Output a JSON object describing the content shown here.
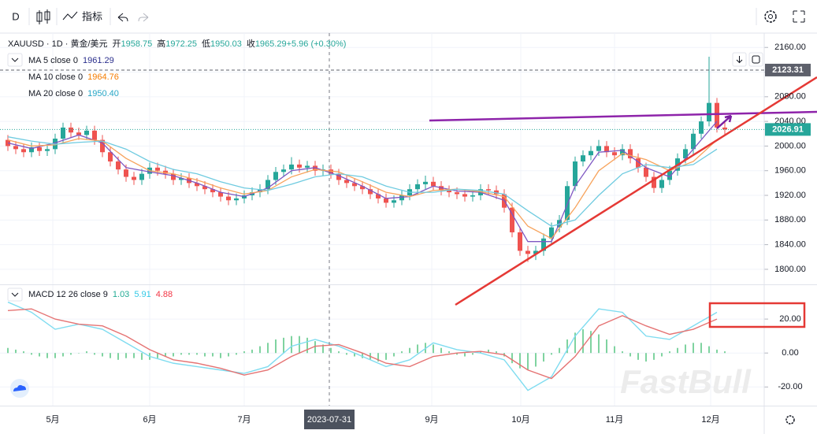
{
  "toolbar": {
    "interval": "D",
    "indicators": "指标"
  },
  "watermark": "FastBull",
  "time_axis": {
    "labels": [
      "5月",
      "6月",
      "7月",
      "9月",
      "10月",
      "11月",
      "12月"
    ],
    "crosshair_date": "2023-07-31"
  },
  "chart_data": [
    {
      "type": "candlestick",
      "title": "XAUUSD · 1D · 黄金/美元",
      "ohlc_legend": [
        {
          "label": "开",
          "value": "1958.75"
        },
        {
          "label": "高",
          "value": "1972.25"
        },
        {
          "label": "低",
          "value": "1950.03"
        },
        {
          "label": "收",
          "value": "1965.29"
        },
        {
          "label": "",
          "value": "+5.96 (+0.30%)"
        }
      ],
      "up_color": "#26a69a",
      "down_color": "#ef5350",
      "ylim": [
        1775.6,
        2183.3
      ],
      "yticks": [
        {
          "value": 2160,
          "label": "2160.00"
        },
        {
          "value": 2120,
          "label": "2120.00"
        },
        {
          "value": 2080,
          "label": "2080.00"
        },
        {
          "value": 2040,
          "label": "2040.00"
        },
        {
          "value": 2000,
          "label": "2000.00"
        },
        {
          "value": 1960,
          "label": "1960.00"
        },
        {
          "value": 1920,
          "label": "1920.00"
        },
        {
          "value": 1880,
          "label": "1880.00"
        },
        {
          "value": 1840,
          "label": "1840.00"
        },
        {
          "value": 1800,
          "label": "1800.00"
        }
      ],
      "ohlc": {
        "open": [
          2010,
          2000,
          1995,
          1990,
          1998,
          1992,
          1995,
          2012,
          2030,
          2022,
          2018,
          2025,
          2010,
          1990,
          1975,
          1962,
          1950,
          1945,
          1955,
          1965,
          1960,
          1955,
          1945,
          1948,
          1940,
          1935,
          1930,
          1925,
          1918,
          1912,
          1915,
          1920,
          1925,
          1930,
          1945,
          1958,
          1962,
          1970,
          1965,
          1968,
          1960,
          1962,
          1955,
          1945,
          1940,
          1935,
          1930,
          1922,
          1915,
          1908,
          1912,
          1920,
          1930,
          1938,
          1942,
          1935,
          1928,
          1925,
          1922,
          1918,
          1920,
          1930,
          1928,
          1922,
          1900,
          1860,
          1830,
          1825,
          1830,
          1850,
          1868,
          1880,
          1935,
          1975,
          1985,
          1992,
          2000,
          1990,
          1985,
          1995,
          1980,
          1965,
          1950,
          1932,
          1945,
          1960,
          1980,
          1995,
          2020,
          2040,
          2070,
          2030
        ],
        "high": [
          2018,
          2008,
          2003,
          2006,
          2006,
          2003,
          2020,
          2038,
          2038,
          2030,
          2033,
          2033,
          2018,
          1998,
          1983,
          1970,
          1958,
          1963,
          1973,
          1973,
          1968,
          1963,
          1956,
          1956,
          1948,
          1943,
          1938,
          1933,
          1926,
          1923,
          1928,
          1933,
          1938,
          1953,
          1966,
          1970,
          1982,
          1978,
          1976,
          1976,
          1970,
          1970,
          1963,
          1953,
          1948,
          1943,
          1938,
          1930,
          1923,
          1920,
          1928,
          1938,
          1946,
          1952,
          1950,
          1943,
          1936,
          1933,
          1930,
          1928,
          1938,
          1938,
          1936,
          1930,
          1908,
          1868,
          1838,
          1838,
          1858,
          1876,
          1888,
          1943,
          1983,
          1993,
          2000,
          2010,
          2008,
          1998,
          2003,
          2003,
          1988,
          1973,
          1958,
          1953,
          1968,
          1988,
          2003,
          2028,
          2048,
          2145,
          2078,
          2040
        ],
        "low": [
          1992,
          1987,
          1982,
          1982,
          1984,
          1984,
          1987,
          2004,
          2014,
          2010,
          2010,
          2002,
          1982,
          1967,
          1954,
          1942,
          1937,
          1937,
          1947,
          1952,
          1947,
          1937,
          1937,
          1932,
          1927,
          1922,
          1917,
          1910,
          1904,
          1904,
          1907,
          1912,
          1917,
          1922,
          1937,
          1950,
          1954,
          1957,
          1957,
          1952,
          1952,
          1947,
          1937,
          1932,
          1927,
          1922,
          1914,
          1907,
          1900,
          1900,
          1904,
          1912,
          1922,
          1930,
          1927,
          1920,
          1917,
          1914,
          1910,
          1910,
          1912,
          1920,
          1914,
          1892,
          1852,
          1822,
          1812,
          1815,
          1822,
          1842,
          1860,
          1872,
          1927,
          1967,
          1977,
          1984,
          1982,
          1977,
          1977,
          1972,
          1957,
          1942,
          1924,
          1924,
          1937,
          1952,
          1972,
          1987,
          2012,
          2032,
          2022,
          2018
        ],
        "close": [
          2000,
          1995,
          1990,
          1998,
          1992,
          1995,
          2012,
          2030,
          2022,
          2018,
          2025,
          2010,
          1990,
          1975,
          1962,
          1950,
          1945,
          1955,
          1965,
          1960,
          1955,
          1945,
          1948,
          1940,
          1935,
          1930,
          1925,
          1918,
          1912,
          1915,
          1920,
          1925,
          1930,
          1945,
          1958,
          1962,
          1970,
          1965,
          1968,
          1960,
          1962,
          1955,
          1945,
          1940,
          1935,
          1930,
          1922,
          1915,
          1908,
          1912,
          1920,
          1930,
          1938,
          1942,
          1935,
          1928,
          1925,
          1922,
          1918,
          1920,
          1930,
          1928,
          1922,
          1900,
          1860,
          1830,
          1825,
          1830,
          1850,
          1868,
          1880,
          1935,
          1975,
          1985,
          1992,
          2000,
          1990,
          1985,
          1995,
          1980,
          1965,
          1950,
          1932,
          1945,
          1960,
          1980,
          1995,
          2020,
          2040,
          2070,
          2030,
          2026.91
        ]
      },
      "overlays": [
        {
          "name": "MA 5 close 0",
          "legend_value": "1961.29",
          "color": "#7e57c2",
          "value_color": "#2a2e8c",
          "x": [
            0,
            3,
            6,
            9,
            12,
            15,
            18,
            21,
            24,
            27,
            30,
            33,
            36,
            39,
            42,
            45,
            48,
            51,
            54,
            57,
            60,
            63,
            66,
            69,
            72,
            75,
            78,
            81,
            84,
            87,
            90
          ],
          "values": [
            2005,
            1996,
            2005,
            2018,
            2005,
            1965,
            1958,
            1952,
            1940,
            1925,
            1918,
            1932,
            1960,
            1965,
            1952,
            1935,
            1915,
            1918,
            1935,
            1927,
            1925,
            1912,
            1845,
            1845,
            1935,
            1990,
            1993,
            1965,
            1950,
            1995,
            2040
          ]
        },
        {
          "name": "MA 10 close 0",
          "legend_value": "1964.76",
          "color": "#f7a35c",
          "value_color": "#f57c00",
          "x": [
            0,
            3,
            6,
            9,
            12,
            15,
            18,
            21,
            24,
            27,
            30,
            33,
            36,
            39,
            42,
            45,
            48,
            51,
            54,
            57,
            60,
            63,
            66,
            69,
            72,
            75,
            78,
            81,
            84,
            87,
            90
          ],
          "values": [
            2010,
            2000,
            2002,
            2012,
            2008,
            1980,
            1960,
            1955,
            1945,
            1932,
            1922,
            1928,
            1950,
            1962,
            1958,
            1942,
            1925,
            1918,
            1928,
            1930,
            1926,
            1918,
            1870,
            1850,
            1900,
            1960,
            1988,
            1978,
            1960,
            1975,
            2010
          ]
        },
        {
          "name": "MA 20 close 0",
          "legend_value": "1950.40",
          "color": "#6fcbe0",
          "value_color": "#26a6c6",
          "x": [
            0,
            3,
            6,
            9,
            12,
            15,
            18,
            21,
            24,
            27,
            30,
            33,
            36,
            39,
            42,
            45,
            48,
            51,
            54,
            57,
            60,
            63,
            66,
            69,
            72,
            75,
            78,
            81,
            84,
            87,
            90
          ],
          "values": [
            2015,
            2008,
            2003,
            2006,
            2008,
            1995,
            1975,
            1962,
            1955,
            1942,
            1932,
            1928,
            1938,
            1950,
            1955,
            1950,
            1935,
            1925,
            1925,
            1930,
            1928,
            1922,
            1895,
            1870,
            1880,
            1920,
            1955,
            1970,
            1965,
            1970,
            1995
          ]
        }
      ],
      "price_lines": [
        {
          "value": 2123.31,
          "color": "#5d606b",
          "dash": "4 3"
        },
        {
          "value": 2026.91,
          "color": "#26a69a",
          "dash": "1 2"
        }
      ]
    },
    {
      "type": "macd",
      "title": "MACD 12 26 close 9",
      "legend_values": [
        {
          "value": "1.03",
          "color": "#22ab94"
        },
        {
          "value": "5.91",
          "color": "#33c9e6"
        },
        {
          "value": "4.88",
          "color": "#f23645"
        }
      ],
      "ylim": [
        -31,
        40
      ],
      "yticks": [
        {
          "value": 20,
          "label": "20.00"
        },
        {
          "value": 0,
          "label": "0.00"
        },
        {
          "value": -20,
          "label": "-20.00"
        }
      ],
      "histogram": {
        "color": "#7fd3a0",
        "values": [
          3,
          2,
          1,
          -1,
          -2,
          -3,
          -3,
          -2,
          -1,
          0,
          1,
          -1,
          -2,
          -3,
          -4,
          -3,
          -3,
          -4,
          -4,
          -3,
          -2,
          -2,
          -1,
          -1,
          -1,
          -2,
          -2,
          -3,
          -2,
          -1,
          1,
          2,
          4,
          6,
          8,
          9,
          10,
          10,
          9,
          7,
          5,
          3,
          1,
          -1,
          -2,
          -3,
          -4,
          -5,
          -4,
          -2,
          1,
          3,
          5,
          6,
          5,
          3,
          1,
          -1,
          -2,
          -1,
          1,
          2,
          1,
          -2,
          -6,
          -9,
          -10,
          -8,
          -5,
          -1,
          3,
          8,
          12,
          14,
          13,
          11,
          8,
          4,
          1,
          -2,
          -4,
          -5,
          -4,
          -2,
          1,
          3,
          5,
          6,
          6,
          4,
          2,
          1
        ]
      },
      "series": [
        {
          "color": "#7fdcf0",
          "x": [
            0,
            3,
            6,
            9,
            12,
            15,
            18,
            21,
            24,
            27,
            30,
            33,
            36,
            39,
            42,
            45,
            48,
            51,
            54,
            57,
            60,
            63,
            66,
            69,
            72,
            75,
            78,
            81,
            84,
            87,
            90
          ],
          "values": [
            30,
            24,
            14,
            17,
            14,
            6,
            -2,
            -6,
            -8,
            -10,
            -12,
            -8,
            4,
            8,
            4,
            -2,
            -8,
            -4,
            6,
            2,
            0,
            -4,
            -22,
            -14,
            10,
            26,
            24,
            10,
            8,
            16,
            24
          ]
        },
        {
          "color": "#e57373",
          "x": [
            0,
            3,
            6,
            9,
            12,
            15,
            18,
            21,
            24,
            27,
            30,
            33,
            36,
            39,
            42,
            45,
            48,
            51,
            54,
            57,
            60,
            63,
            66,
            69,
            72,
            75,
            78,
            81,
            84,
            87,
            90
          ],
          "values": [
            25,
            26,
            20,
            17,
            16,
            10,
            2,
            -4,
            -6,
            -9,
            -13,
            -10,
            -2,
            4,
            5,
            0,
            -6,
            -8,
            -2,
            0,
            1,
            -1,
            -10,
            -15,
            -2,
            16,
            22,
            16,
            11,
            14,
            20
          ]
        }
      ]
    }
  ]
}
